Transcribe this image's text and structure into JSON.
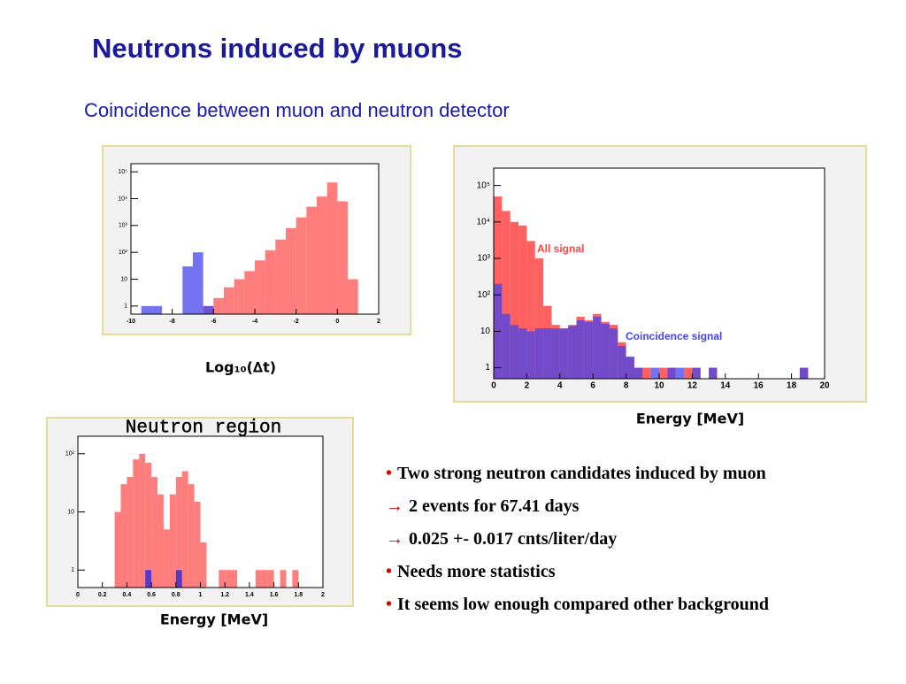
{
  "title": "Neutrons induced by muons",
  "subtitle": "Coincidence between muon and neutron detector",
  "bullets": [
    {
      "marker": "•",
      "text": "Two strong neutron candidates induced by muon"
    },
    {
      "marker": "→",
      "text": "2 events for 67.41 days"
    },
    {
      "marker": "→",
      "text": "0.025 +- 0.017 cnts/liter/day"
    },
    {
      "marker": "•",
      "text": "Needs more statistics"
    },
    {
      "marker": "•",
      "text": "It seems low enough compared other background"
    }
  ],
  "chart_data": [
    {
      "type": "histogram",
      "xlabel": "Log₁₀(∆t)",
      "log_y": true,
      "bins": [
        -10,
        -9.5,
        -9,
        -8.5,
        -8,
        -7.5,
        -7,
        -6.5,
        -6,
        -5.5,
        -5,
        -4.5,
        -4,
        -3.5,
        -3,
        -2.5,
        -2,
        -1.5,
        -1,
        -0.5,
        0,
        0.5,
        1,
        1.5,
        2
      ],
      "series": [
        {
          "color": "#ff6666",
          "values": [
            0,
            0,
            0,
            0,
            0,
            0,
            0,
            1,
            2,
            5,
            10,
            20,
            50,
            120,
            300,
            800,
            2000,
            5000,
            12000,
            40000,
            8000,
            10,
            0,
            0
          ]
        },
        {
          "color": "#4444ee",
          "values": [
            0,
            1,
            1,
            0,
            0,
            30,
            100,
            1,
            0,
            0,
            0,
            0,
            0,
            0,
            0,
            0,
            0,
            0,
            0,
            0,
            0,
            0,
            0,
            0
          ]
        }
      ],
      "xlim": [
        -10,
        2
      ],
      "xticks": [
        -10,
        -8,
        -6,
        -4,
        -2,
        0,
        2
      ],
      "ylim": [
        0.5,
        200000
      ],
      "yticks": [
        1,
        10,
        {
          "value": 100,
          "label": "10²"
        },
        {
          "value": 1000,
          "label": "10³"
        },
        {
          "value": 10000,
          "label": "10⁴"
        },
        {
          "value": 100000,
          "label": "10⁵"
        }
      ]
    },
    {
      "type": "histogram",
      "xlabel": "Energy [MeV]",
      "log_y": true,
      "bins": [
        0,
        0.5,
        1,
        1.5,
        2,
        2.5,
        3,
        3.5,
        4,
        4.5,
        5,
        5.5,
        6,
        6.5,
        7,
        7.5,
        8,
        8.5,
        9,
        9.5,
        10,
        10.5,
        11,
        11.5,
        12,
        12.5,
        13,
        13.5,
        14,
        14.5,
        15,
        15.5,
        16,
        16.5,
        17,
        17.5,
        18,
        18.5,
        19,
        19.5,
        20
      ],
      "series": [
        {
          "name": "All signal",
          "color": "#ff4444",
          "values": [
            50000,
            20000,
            10000,
            8000,
            3000,
            1000,
            50,
            15,
            12,
            15,
            25,
            20,
            30,
            18,
            15,
            5,
            2,
            1,
            1,
            0,
            1,
            1,
            0,
            1,
            1,
            0,
            1,
            0,
            0,
            0,
            0,
            0,
            0,
            0,
            0,
            0,
            0,
            1,
            0,
            0
          ]
        },
        {
          "name": "Coincidence signal",
          "color": "#4444ee",
          "values": [
            200,
            30,
            15,
            12,
            10,
            12,
            12,
            12,
            12,
            14,
            20,
            18,
            25,
            16,
            12,
            4,
            2,
            1,
            0,
            1,
            0,
            1,
            1,
            0,
            1,
            0,
            1,
            0,
            0,
            0,
            0,
            0,
            0,
            0,
            0,
            0,
            0,
            1,
            0,
            0
          ]
        }
      ],
      "xlim": [
        0,
        20
      ],
      "xticks": [
        0,
        2,
        4,
        6,
        8,
        10,
        12,
        14,
        16,
        18,
        20
      ],
      "ylim": [
        0.5,
        300000
      ],
      "yticks": [
        1,
        10,
        {
          "value": 100,
          "label": "10²"
        },
        {
          "value": 1000,
          "label": "10³"
        },
        {
          "value": 10000,
          "label": "10⁴"
        },
        {
          "value": 100000,
          "label": "10⁵"
        }
      ]
    },
    {
      "type": "histogram",
      "title": "Neutron region",
      "xlabel": "Energy [MeV]",
      "log_y": true,
      "bins": [
        0,
        0.05,
        0.1,
        0.15,
        0.2,
        0.25,
        0.3,
        0.35,
        0.4,
        0.45,
        0.5,
        0.55,
        0.6,
        0.65,
        0.7,
        0.75,
        0.8,
        0.85,
        0.9,
        0.95,
        1,
        1.05,
        1.1,
        1.15,
        1.2,
        1.25,
        1.3,
        1.35,
        1.4,
        1.45,
        1.5,
        1.55,
        1.6,
        1.65,
        1.7,
        1.75,
        1.8,
        1.85,
        1.9,
        1.95,
        2
      ],
      "series": [
        {
          "color": "#ff6666",
          "values": [
            0,
            0,
            0,
            0,
            0,
            0,
            10,
            30,
            40,
            80,
            100,
            70,
            40,
            20,
            5,
            20,
            40,
            50,
            30,
            15,
            3,
            0,
            0,
            1,
            1,
            1,
            0,
            0,
            0,
            1,
            1,
            1,
            0,
            1,
            0,
            1,
            0,
            0,
            0,
            0
          ]
        },
        {
          "color": "#2222dd",
          "values": [
            0,
            0,
            0,
            0,
            0,
            0,
            0,
            0,
            0,
            0,
            0,
            1,
            0,
            0,
            0,
            0,
            1,
            0,
            0,
            0,
            0,
            0,
            0,
            0,
            0,
            0,
            0,
            0,
            0,
            0,
            0,
            0,
            0,
            0,
            0,
            0,
            0,
            0,
            0,
            0
          ]
        }
      ],
      "xlim": [
        0,
        2
      ],
      "xticks": [
        0,
        0.2,
        0.4,
        0.6,
        0.8,
        1,
        1.2,
        1.4,
        1.6,
        1.8,
        2
      ],
      "ylim": [
        0.5,
        200
      ],
      "yticks": [
        1,
        10,
        {
          "value": 100,
          "label": "10²"
        }
      ]
    }
  ]
}
